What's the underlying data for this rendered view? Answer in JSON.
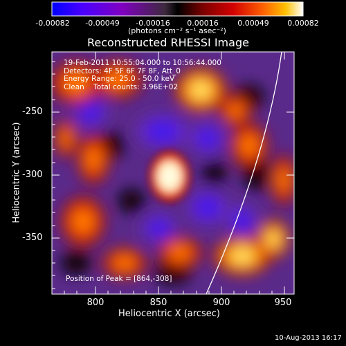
{
  "colorbar": {
    "tick_labels": [
      "-0.00082",
      "-0.00049",
      "-0.00016",
      "0.00016",
      "0.00049",
      "0.00082"
    ],
    "units": "(photons cm⁻² s⁻¹ asec⁻²)",
    "colormap_colors": [
      "#0000ff",
      "#4a00ff",
      "#8000c0",
      "#3d2a3d",
      "#000000",
      "#7a0000",
      "#d20000",
      "#ff6000",
      "#ffc000",
      "#ffffff"
    ]
  },
  "title": "Reconstructed RHESSI Image",
  "info_lines": [
    "19-Feb-2011 10:55:04.000 to 10:56:44.000",
    "Detectors: 4F 5F 6F 7F 8F, Att_0",
    "Energy Range: 25.0 - 50.0 keV",
    "Clean    Total counts: 3.96E+02"
  ],
  "peak_text": "Position of Peak = [864,-308]",
  "axes": {
    "xlabel": "Heliocentric X (arcsec)",
    "ylabel": "Heliocentric Y (arcsec)",
    "xticks": [
      "800",
      "850",
      "900",
      "950"
    ],
    "yticks": [
      "-250",
      "-300",
      "-350"
    ]
  },
  "footer": "10-Aug-2013 16:17"
}
